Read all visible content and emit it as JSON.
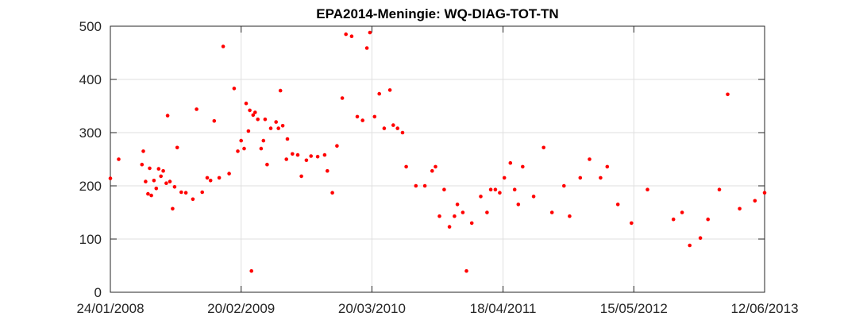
{
  "chart_data": {
    "type": "scatter",
    "title": "EPA2014-Meningie: WQ-DIAG-TOT-TN",
    "xlabel": "",
    "ylabel": "",
    "x_axis": "date",
    "xlim": [
      "2008-01-24",
      "2013-06-12"
    ],
    "ylim": [
      0,
      500
    ],
    "x_ticks": [
      "24/01/2008",
      "20/02/2009",
      "20/03/2010",
      "18/04/2011",
      "15/05/2012",
      "12/06/2013"
    ],
    "y_ticks": [
      "0",
      "100",
      "200",
      "300",
      "400",
      "500"
    ],
    "grid": true,
    "legend": "none",
    "marker_color": "#ff0000",
    "grid_color": "#dfdfdf",
    "axis_color": "#262626",
    "series": [
      {
        "points": [
          [
            "2008-01-24",
            214
          ],
          [
            "2008-02-18",
            250
          ],
          [
            "2008-04-28",
            240
          ],
          [
            "2008-05-02",
            265
          ],
          [
            "2008-05-09",
            208
          ],
          [
            "2008-05-16",
            185
          ],
          [
            "2008-05-21",
            233
          ],
          [
            "2008-05-26",
            182
          ],
          [
            "2008-06-03",
            210
          ],
          [
            "2008-06-10",
            195
          ],
          [
            "2008-06-17",
            232
          ],
          [
            "2008-06-24",
            218
          ],
          [
            "2008-07-01",
            228
          ],
          [
            "2008-07-10",
            205
          ],
          [
            "2008-07-14",
            332
          ],
          [
            "2008-07-21",
            208
          ],
          [
            "2008-07-29",
            157
          ],
          [
            "2008-08-04",
            198
          ],
          [
            "2008-08-12",
            272
          ],
          [
            "2008-08-24",
            188
          ],
          [
            "2008-09-07",
            187
          ],
          [
            "2008-09-28",
            175
          ],
          [
            "2008-10-09",
            344
          ],
          [
            "2008-10-26",
            188
          ],
          [
            "2008-11-10",
            215
          ],
          [
            "2008-11-20",
            210
          ],
          [
            "2008-12-01",
            322
          ],
          [
            "2008-12-16",
            215
          ],
          [
            "2008-12-28",
            462
          ],
          [
            "2009-01-15",
            223
          ],
          [
            "2009-01-30",
            383
          ],
          [
            "2009-02-10",
            265
          ],
          [
            "2009-02-20",
            285
          ],
          [
            "2009-03-01",
            270
          ],
          [
            "2009-03-07",
            355
          ],
          [
            "2009-03-14",
            303
          ],
          [
            "2009-03-18",
            342
          ],
          [
            "2009-03-23",
            40
          ],
          [
            "2009-03-28",
            333
          ],
          [
            "2009-04-03",
            338
          ],
          [
            "2009-04-11",
            325
          ],
          [
            "2009-04-21",
            270
          ],
          [
            "2009-04-28",
            285
          ],
          [
            "2009-05-03",
            325
          ],
          [
            "2009-05-09",
            240
          ],
          [
            "2009-05-20",
            308
          ],
          [
            "2009-06-05",
            320
          ],
          [
            "2009-06-12",
            308
          ],
          [
            "2009-06-18",
            379
          ],
          [
            "2009-06-25",
            313
          ],
          [
            "2009-07-06",
            250
          ],
          [
            "2009-07-09",
            288
          ],
          [
            "2009-07-24",
            260
          ],
          [
            "2009-08-09",
            258
          ],
          [
            "2009-08-20",
            218
          ],
          [
            "2009-09-04",
            248
          ],
          [
            "2009-09-18",
            256
          ],
          [
            "2009-10-08",
            255
          ],
          [
            "2009-10-29",
            258
          ],
          [
            "2009-11-06",
            228
          ],
          [
            "2009-11-21",
            187
          ],
          [
            "2009-12-05",
            275
          ],
          [
            "2009-12-21",
            365
          ],
          [
            "2010-01-01",
            485
          ],
          [
            "2010-01-18",
            481
          ],
          [
            "2010-02-04",
            330
          ],
          [
            "2010-02-20",
            323
          ],
          [
            "2010-03-05",
            459
          ],
          [
            "2010-03-14",
            488
          ],
          [
            "2010-03-28",
            330
          ],
          [
            "2010-04-11",
            373
          ],
          [
            "2010-04-26",
            308
          ],
          [
            "2010-05-13",
            380
          ],
          [
            "2010-05-23",
            314
          ],
          [
            "2010-06-05",
            308
          ],
          [
            "2010-06-20",
            300
          ],
          [
            "2010-07-01",
            236
          ],
          [
            "2010-07-30",
            200
          ],
          [
            "2010-08-26",
            200
          ],
          [
            "2010-09-17",
            228
          ],
          [
            "2010-09-27",
            236
          ],
          [
            "2010-10-09",
            143
          ],
          [
            "2010-10-23",
            193
          ],
          [
            "2010-11-08",
            123
          ],
          [
            "2010-11-23",
            143
          ],
          [
            "2010-12-02",
            165
          ],
          [
            "2010-12-18",
            150
          ],
          [
            "2010-12-29",
            40
          ],
          [
            "2011-01-14",
            130
          ],
          [
            "2011-02-10",
            180
          ],
          [
            "2011-03-01",
            150
          ],
          [
            "2011-03-12",
            193
          ],
          [
            "2011-03-26",
            193
          ],
          [
            "2011-04-08",
            187
          ],
          [
            "2011-04-22",
            215
          ],
          [
            "2011-05-10",
            243
          ],
          [
            "2011-05-23",
            193
          ],
          [
            "2011-06-03",
            165
          ],
          [
            "2011-06-16",
            236
          ],
          [
            "2011-07-19",
            180
          ],
          [
            "2011-08-18",
            272
          ],
          [
            "2011-09-12",
            150
          ],
          [
            "2011-10-18",
            200
          ],
          [
            "2011-11-04",
            143
          ],
          [
            "2011-12-06",
            215
          ],
          [
            "2012-01-03",
            250
          ],
          [
            "2012-02-05",
            215
          ],
          [
            "2012-02-25",
            236
          ],
          [
            "2012-03-28",
            165
          ],
          [
            "2012-05-08",
            130
          ],
          [
            "2012-06-25",
            193
          ],
          [
            "2012-09-11",
            137
          ],
          [
            "2012-10-07",
            150
          ],
          [
            "2012-10-30",
            88
          ],
          [
            "2012-12-01",
            102
          ],
          [
            "2012-12-24",
            137
          ],
          [
            "2013-01-27",
            193
          ],
          [
            "2013-02-21",
            372
          ],
          [
            "2013-03-29",
            157
          ],
          [
            "2013-05-14",
            172
          ],
          [
            "2013-06-12",
            187
          ]
        ]
      }
    ]
  }
}
